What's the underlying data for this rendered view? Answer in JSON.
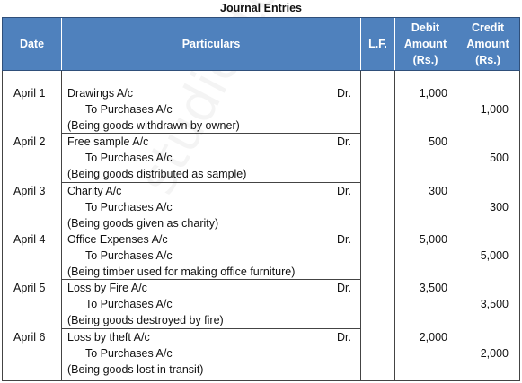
{
  "title": "Journal Entries",
  "watermark": "studiestoday.com",
  "columns": {
    "date": "Date",
    "particulars": "Particulars",
    "lf": "L.F.",
    "debit": [
      "Debit",
      "Amount",
      "(Rs.)"
    ],
    "credit": [
      "Credit",
      "Amount",
      "(Rs.)"
    ]
  },
  "entries": [
    {
      "date": "April 1",
      "debit_account": "Drawings A/c",
      "dr": "Dr.",
      "credit_account": "To Purchases A/c",
      "narration": "(Being goods withdrawn by owner)",
      "debit": "1,000",
      "credit": "1,000"
    },
    {
      "date": "April 2",
      "debit_account": "Free sample A/c",
      "dr": "Dr.",
      "credit_account": "To Purchases A/c",
      "narration": "(Being goods distributed as sample)",
      "debit": "500",
      "credit": "500"
    },
    {
      "date": "April 3",
      "debit_account": "Charity A/c",
      "dr": "Dr.",
      "credit_account": "To Purchases A/c",
      "narration": "(Being goods given as charity)",
      "debit": "300",
      "credit": "300"
    },
    {
      "date": "April 4",
      "debit_account": "Office Expenses A/c",
      "dr": "Dr.",
      "credit_account": "To Purchases A/c",
      "narration": "(Being timber used for making office furniture)",
      "debit": "5,000",
      "credit": "5,000"
    },
    {
      "date": "April 5",
      "debit_account": "Loss by Fire A/c",
      "dr": "Dr.",
      "credit_account": "To Purchases A/c",
      "narration": "(Being goods destroyed by fire)",
      "debit": "3,500",
      "credit": "3,500"
    },
    {
      "date": "April 6",
      "debit_account": "Loss by theft A/c",
      "dr": "Dr.",
      "credit_account": "To Purchases A/c",
      "narration": "(Being goods lost in transit)",
      "debit": "2,000",
      "credit": "2,000"
    }
  ]
}
